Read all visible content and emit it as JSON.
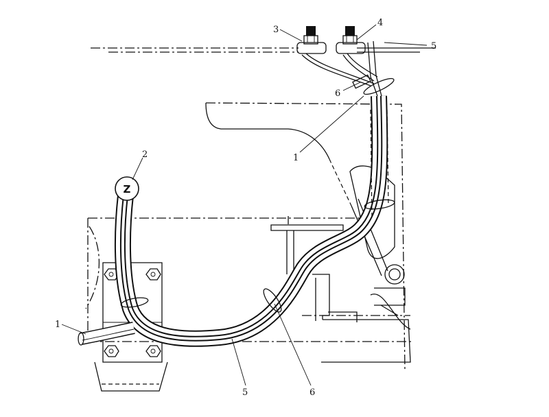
{
  "diagram": {
    "labels": {
      "l3": "3",
      "l4": "4",
      "l5_top": "5",
      "l6_top": "6",
      "l1_mid": "1",
      "l2": "2",
      "l1_left": "1",
      "l5_bottom": "5",
      "l6_bottom": "6",
      "sensor": "Z"
    }
  }
}
